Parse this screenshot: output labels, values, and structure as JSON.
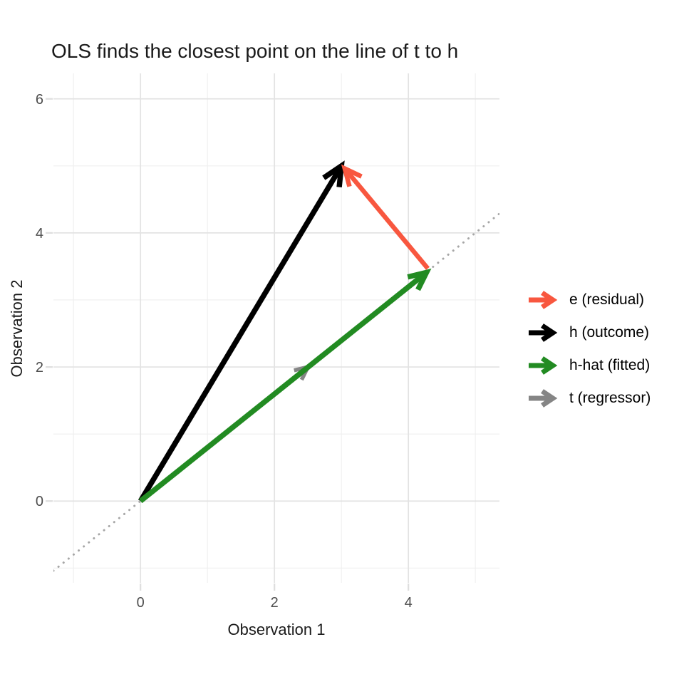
{
  "title": "OLS finds the closest point on the line of t to h",
  "chart_data": {
    "type": "line",
    "subtype": "vector-arrow-plot",
    "title": "OLS finds the closest point on the line of t to h",
    "xlabel": "Observation 1",
    "ylabel": "Observation 2",
    "xlim": [
      -1.3,
      5.36
    ],
    "ylim": [
      -1.22,
      6.38
    ],
    "x_major_ticks": [
      0,
      2,
      4
    ],
    "y_major_ticks": [
      0,
      2,
      4,
      6
    ],
    "x_minor_gridlines": [
      -1,
      1,
      3,
      5
    ],
    "y_minor_gridlines": [
      -1,
      1,
      3,
      5
    ],
    "grid": "on",
    "abline": {
      "slope": 0.8,
      "intercept": 0,
      "style": "dotted",
      "color": "#a6a6a6"
    },
    "vectors": [
      {
        "name": "t (regressor)",
        "from": [
          0,
          0
        ],
        "to": [
          2.5,
          2
        ],
        "color": "#858585",
        "width": 5.5,
        "head": 20
      },
      {
        "name": "h (outcome)",
        "from": [
          0,
          0
        ],
        "to": [
          3,
          5
        ],
        "color": "#000000",
        "width": 7.5,
        "head": 30
      },
      {
        "name": "h-hat (fitted)",
        "from": [
          0,
          0
        ],
        "to": [
          4.27,
          3.41
        ],
        "color": "#228B22",
        "width": 7.5,
        "head": 27
      },
      {
        "name": "e (residual)",
        "from": [
          4.29,
          3.47
        ],
        "to": [
          3.05,
          4.96
        ],
        "color": "#F8573F",
        "width": 6.5,
        "head": 26
      }
    ],
    "legend_position": "right"
  },
  "legend": {
    "items": [
      {
        "label": "e (residual)",
        "color": "#F8573F"
      },
      {
        "label": "h (outcome)",
        "color": "#000000"
      },
      {
        "label": "h-hat (fitted)",
        "color": "#228B22"
      },
      {
        "label": "t (regressor)",
        "color": "#858585"
      }
    ]
  },
  "colors": {
    "background": "#ffffff",
    "grid_major": "#e3e3e3",
    "grid_minor": "#efefef",
    "tick_mark": "#dedede",
    "tick_label": "#4d4d4d",
    "dotted_line": "#a6a6a6"
  }
}
